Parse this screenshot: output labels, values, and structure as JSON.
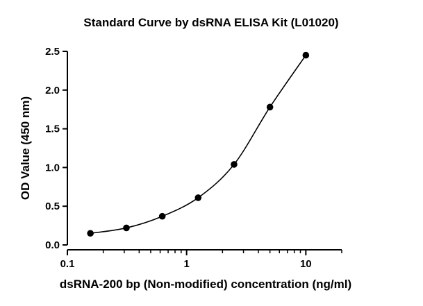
{
  "chart_data": {
    "type": "scatter",
    "title": "Standard Curve by dsRNA ELISA Kit (L01020)",
    "xlabel": "dsRNA-200 bp (Non-modified) concentration (ng/ml)",
    "ylabel": "OD Value (450 nm)",
    "x_scale": "log",
    "xlim": [
      0.1,
      20
    ],
    "ylim": [
      0,
      2.5
    ],
    "x_ticks": [
      0.1,
      1,
      10
    ],
    "x_tick_labels": [
      "0.1",
      "1",
      "10"
    ],
    "y_ticks": [
      0,
      0.5,
      1,
      1.5,
      2,
      2.5
    ],
    "y_tick_labels": [
      "0.0",
      "0.5",
      "1.0",
      "1.5",
      "2.0",
      "2.5"
    ],
    "grid": false,
    "legend": "none",
    "fit_curve": "sigmoidal smooth fit through points",
    "series": [
      {
        "x": [
          0.156,
          0.3125,
          0.625,
          1.25,
          2.5,
          5,
          10
        ],
        "y": [
          0.15,
          0.22,
          0.37,
          0.61,
          1.04,
          1.78,
          2.45
        ]
      }
    ],
    "colors": {
      "points": "#000000",
      "curve": "#000000",
      "axes": "#000000"
    }
  }
}
